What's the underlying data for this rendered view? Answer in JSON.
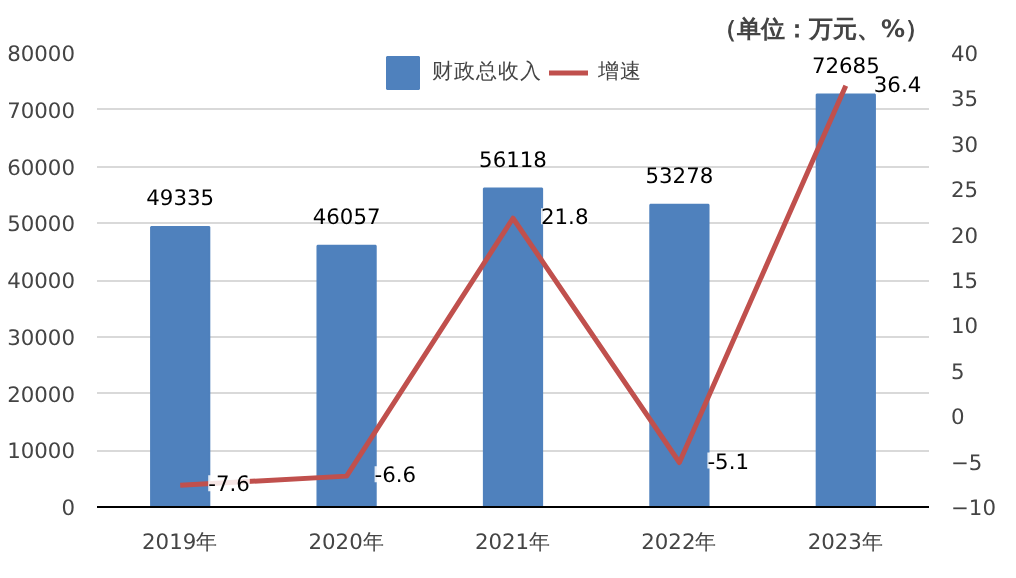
{
  "chart_data": {
    "type": "bar",
    "categories": [
      "2019年",
      "2020年",
      "2021年",
      "2022年",
      "2023年"
    ],
    "series": [
      {
        "name": "财政总收入",
        "type": "bar",
        "color": "#4f81bd",
        "values": [
          49335,
          46057,
          56118,
          53278,
          72685
        ]
      },
      {
        "name": "增速",
        "type": "line",
        "axis": "y2",
        "color": "#c0504d",
        "values": [
          -7.6,
          -6.6,
          21.8,
          -5.1,
          36.4
        ]
      }
    ],
    "ylim": [
      0,
      80000
    ],
    "yticks": [
      0,
      10000,
      20000,
      30000,
      40000,
      50000,
      60000,
      70000,
      80000
    ],
    "y2lim": [
      -10,
      40
    ],
    "y2ticks": [
      -10,
      -5,
      0,
      5,
      10,
      15,
      20,
      25,
      30,
      35,
      40
    ],
    "annotations": [
      "（单位：万元、%）"
    ],
    "data_labels": true,
    "grid": "y",
    "legend": "top",
    "marker": "none",
    "line_style": "solid"
  }
}
